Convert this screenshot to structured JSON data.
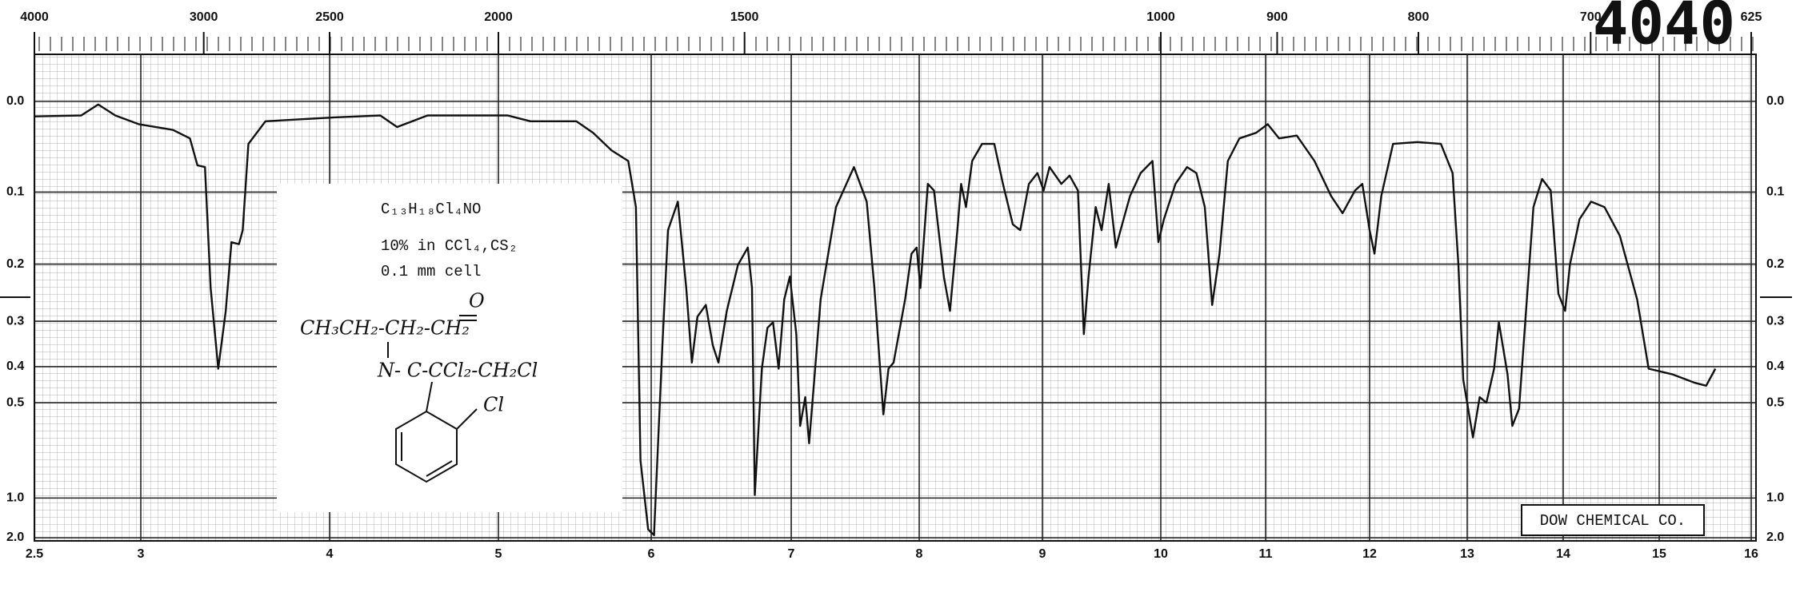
{
  "chart_data": {
    "type": "line",
    "color": "#111111",
    "x": [
      2.5,
      2.72,
      2.8,
      2.88,
      2.99,
      3.17,
      3.26,
      3.3,
      3.34,
      3.37,
      3.41,
      3.45,
      3.48,
      3.52,
      3.54,
      3.57,
      3.66,
      4.03,
      4.3,
      4.4,
      4.58,
      5.06,
      5.21,
      5.51,
      5.62,
      5.74,
      5.85,
      5.9,
      5.93,
      5.98,
      6.02,
      6.08,
      6.12,
      6.19,
      6.25,
      6.29,
      6.33,
      6.39,
      6.44,
      6.48,
      6.54,
      6.62,
      6.69,
      6.72,
      6.74,
      6.79,
      6.83,
      6.87,
      6.91,
      6.95,
      6.99,
      7.04,
      7.07,
      7.11,
      7.14,
      7.18,
      7.23,
      7.35,
      7.49,
      7.59,
      7.65,
      7.72,
      7.76,
      7.8,
      7.89,
      7.94,
      7.98,
      8.01,
      8.07,
      8.12,
      8.2,
      8.25,
      8.31,
      8.34,
      8.38,
      8.43,
      8.51,
      8.61,
      8.68,
      8.76,
      8.82,
      8.89,
      8.96,
      9.01,
      9.06,
      9.16,
      9.23,
      9.3,
      9.35,
      9.39,
      9.45,
      9.5,
      9.56,
      9.62,
      9.66,
      9.74,
      9.83,
      9.93,
      9.98,
      10.03,
      10.14,
      10.25,
      10.34,
      10.42,
      10.49,
      10.56,
      10.64,
      10.75,
      10.91,
      11.02,
      11.13,
      11.3,
      11.47,
      11.63,
      11.74,
      11.86,
      11.93,
      12.0,
      12.05,
      12.12,
      12.24,
      12.49,
      12.73,
      12.85,
      12.91,
      12.96,
      13.06,
      13.13,
      13.2,
      13.28,
      13.33,
      13.42,
      13.47,
      13.54,
      13.63,
      13.69,
      13.78,
      13.87,
      13.95,
      14.02,
      14.07,
      14.17,
      14.29,
      14.43,
      14.59,
      14.77,
      14.89,
      15.14,
      15.39,
      15.51,
      15.61
    ],
    "values": [
      0.015,
      0.014,
      0.003,
      0.014,
      0.023,
      0.029,
      0.038,
      0.068,
      0.07,
      0.239,
      0.405,
      0.28,
      0.167,
      0.17,
      0.15,
      0.044,
      0.02,
      0.016,
      0.014,
      0.026,
      0.014,
      0.014,
      0.02,
      0.02,
      0.032,
      0.051,
      0.063,
      0.119,
      0.732,
      1.54,
      1.8,
      0.35,
      0.15,
      0.112,
      0.239,
      0.39,
      0.291,
      0.269,
      0.35,
      0.39,
      0.28,
      0.201,
      0.175,
      0.239,
      0.97,
      0.405,
      0.313,
      0.302,
      0.405,
      0.259,
      0.22,
      0.326,
      0.579,
      0.483,
      0.649,
      0.434,
      0.259,
      0.119,
      0.07,
      0.112,
      0.239,
      0.538,
      0.405,
      0.39,
      0.259,
      0.184,
      0.175,
      0.239,
      0.09,
      0.098,
      0.22,
      0.28,
      0.15,
      0.09,
      0.119,
      0.063,
      0.044,
      0.044,
      0.09,
      0.142,
      0.15,
      0.09,
      0.077,
      0.098,
      0.07,
      0.09,
      0.08,
      0.098,
      0.326,
      0.22,
      0.119,
      0.15,
      0.09,
      0.175,
      0.15,
      0.105,
      0.077,
      0.063,
      0.167,
      0.135,
      0.09,
      0.07,
      0.077,
      0.119,
      0.269,
      0.184,
      0.063,
      0.038,
      0.032,
      0.023,
      0.038,
      0.035,
      0.063,
      0.105,
      0.127,
      0.098,
      0.09,
      0.15,
      0.184,
      0.105,
      0.044,
      0.042,
      0.044,
      0.077,
      0.201,
      0.434,
      0.624,
      0.483,
      0.5,
      0.405,
      0.302,
      0.419,
      0.579,
      0.519,
      0.239,
      0.119,
      0.084,
      0.098,
      0.249,
      0.28,
      0.201,
      0.135,
      0.112,
      0.119,
      0.158,
      0.259,
      0.405,
      0.419,
      0.442,
      0.45,
      0.405
    ],
    "xlim": [
      2.5,
      16
    ],
    "xticks": [
      2.5,
      3,
      4,
      5,
      6,
      7,
      8,
      9,
      10,
      11,
      12,
      13,
      14,
      15,
      16
    ],
    "x2ticks": [
      4000,
      3000,
      2500,
      2000,
      1500,
      1000,
      900,
      800,
      700,
      625
    ],
    "ylim": [
      0,
      2
    ],
    "yticks": [
      {
        "value": 0,
        "label": "0.0"
      },
      0.1,
      0.2,
      0.3,
      0.4,
      0.5,
      {
        "value": 1,
        "label": "1.0"
      },
      {
        "value": 2,
        "label": "2.0"
      }
    ],
    "grid": true,
    "spectrum_number": "4040",
    "source": "DOW CHEMICAL CO.",
    "formula": "C₁₃H₁₈Cl₄NO",
    "conditions": [
      "10% in CCl₄,CS₂",
      "0.1 mm cell"
    ],
    "structure": [
      "CH₃CH₂-CH₂-CH₂",
      "O",
      "N- C-CCl₂-CH₂Cl",
      "Cl"
    ]
  }
}
